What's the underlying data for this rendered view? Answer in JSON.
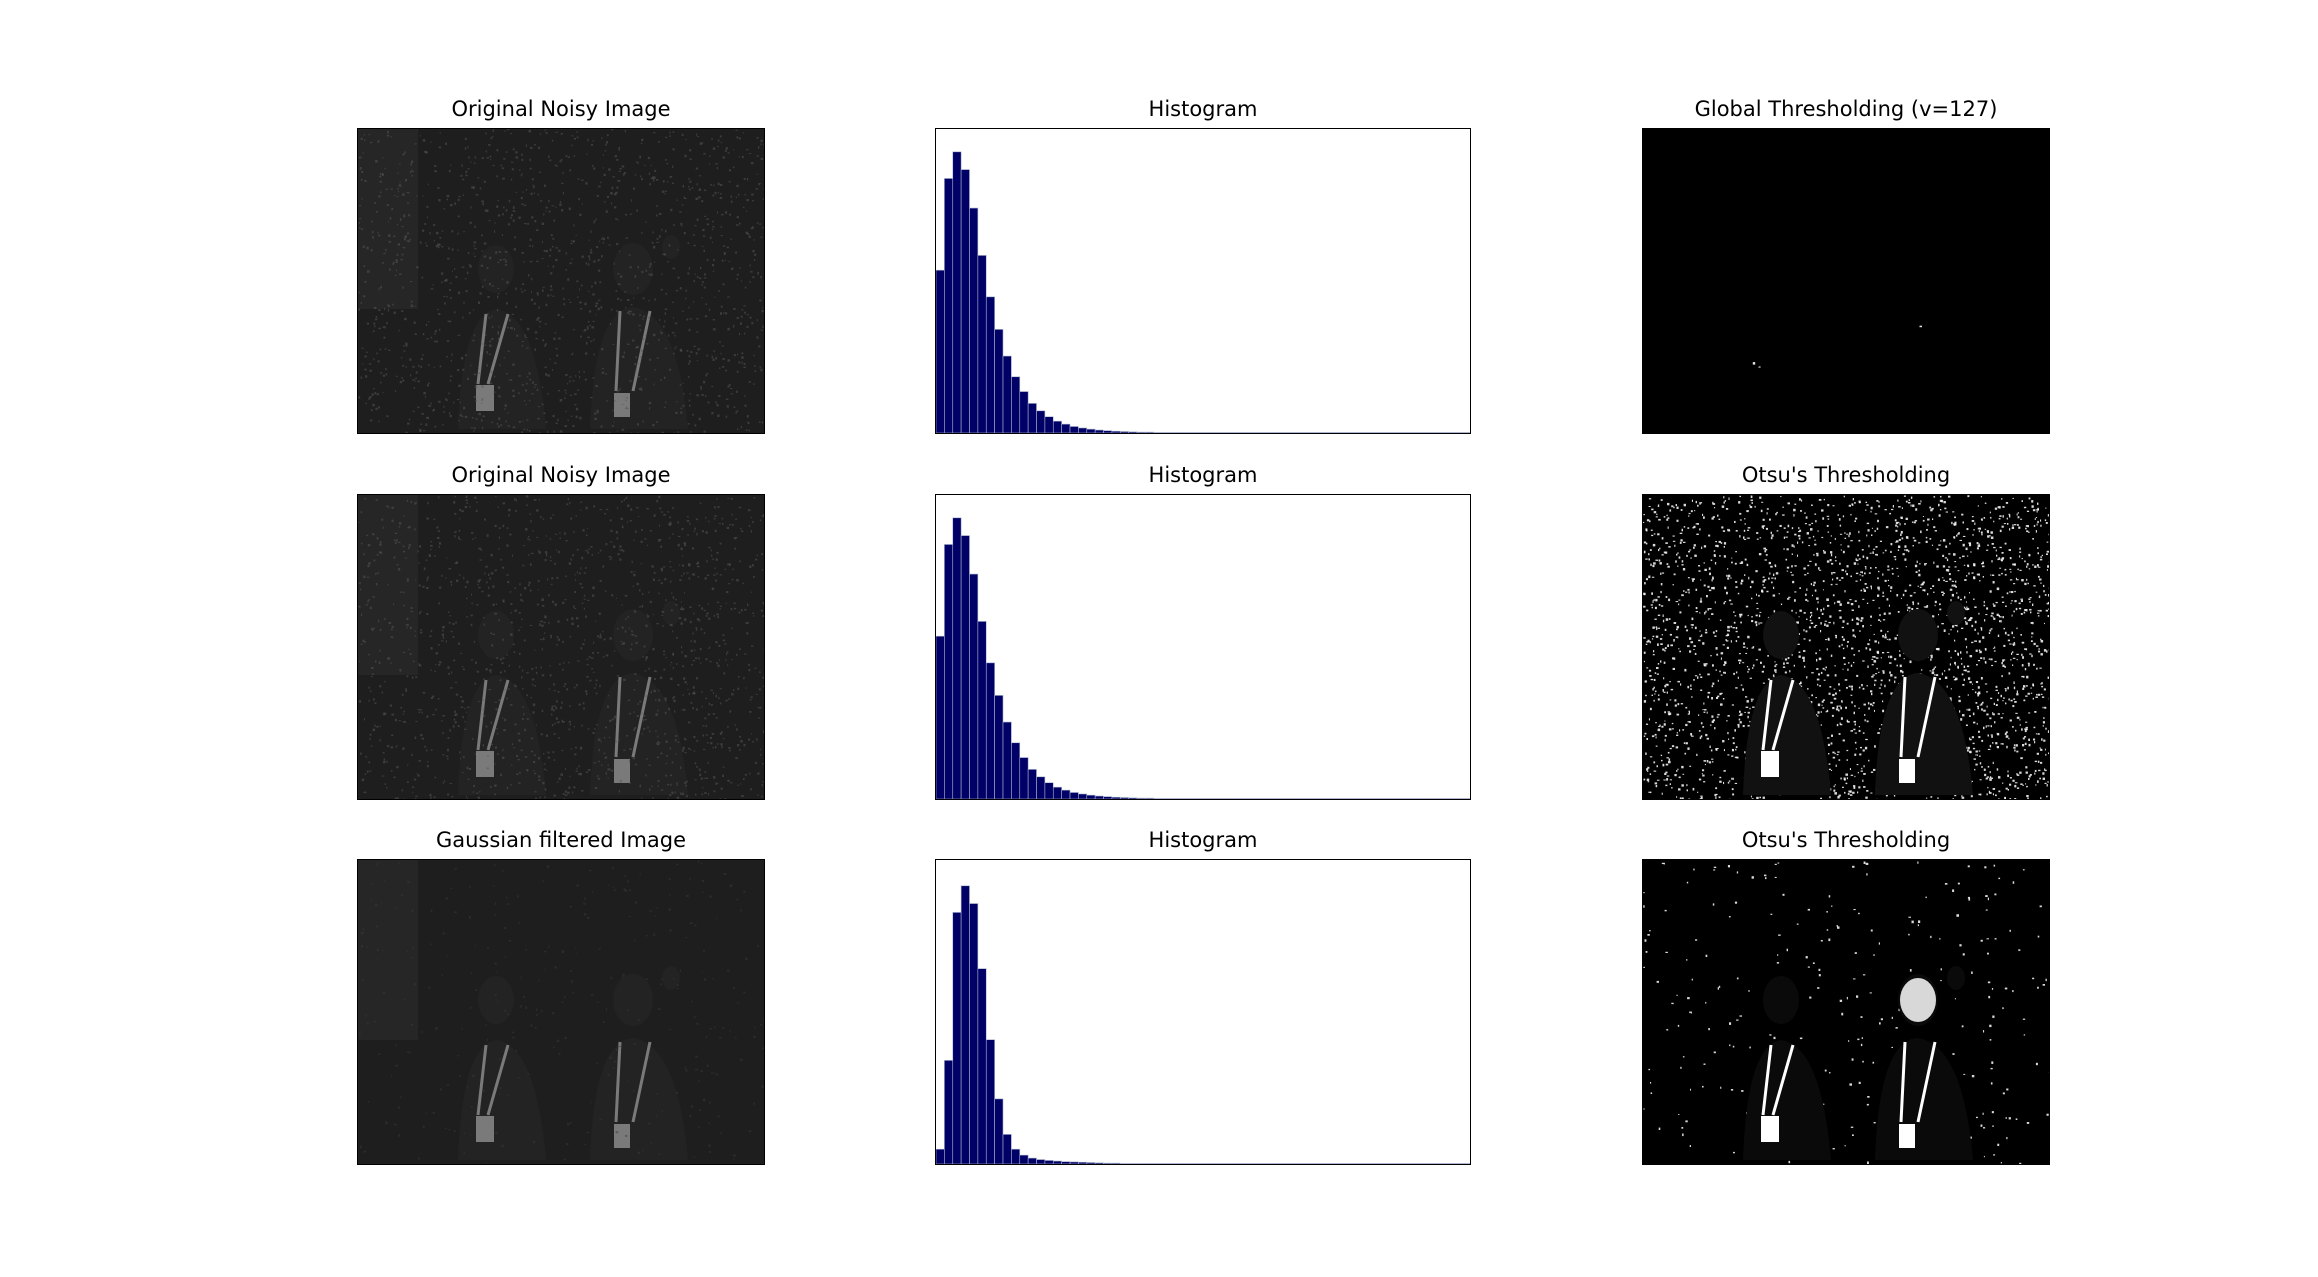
{
  "figure": {
    "rows": [
      {
        "image_title": "Original Noisy Image",
        "hist_title": "Histogram",
        "thresh_title": "Global Thresholding (v=127)"
      },
      {
        "image_title": "Original Noisy Image",
        "hist_title": "Histogram",
        "thresh_title": "Otsu's Thresholding"
      },
      {
        "image_title": "Gaussian filtered Image",
        "hist_title": "Histogram",
        "thresh_title": "Otsu's Thresholding"
      }
    ]
  },
  "colors": {
    "bar_fill": "#000066",
    "bar_edge": "#aab4cc",
    "image_dark": "#1e1e1e",
    "threshold_black": "#000000",
    "threshold_white": "#ffffff"
  },
  "chart_data": [
    {
      "type": "bar",
      "x_range": [
        0,
        255
      ],
      "grid": false,
      "bins": [
        0,
        4,
        8,
        12,
        16,
        20,
        24,
        28,
        32,
        36,
        40,
        44,
        48,
        52,
        56,
        60,
        64,
        68,
        72,
        76,
        80,
        84,
        88,
        92,
        96,
        100,
        104,
        108,
        112,
        116,
        120,
        124,
        128,
        132,
        136,
        140,
        144,
        148,
        152,
        156,
        160,
        164,
        168,
        172,
        176,
        180,
        184,
        188,
        192,
        196,
        200,
        204,
        208,
        212,
        216,
        220,
        224,
        228,
        232,
        236,
        240,
        244,
        248,
        252
      ],
      "values": [
        0.55,
        0.86,
        0.95,
        0.89,
        0.76,
        0.6,
        0.46,
        0.35,
        0.26,
        0.19,
        0.14,
        0.1,
        0.075,
        0.055,
        0.04,
        0.03,
        0.022,
        0.017,
        0.013,
        0.01,
        0.008,
        0.006,
        0.005,
        0.004,
        0.003,
        0.003,
        0.002,
        0.002,
        0.002,
        0.001,
        0.001,
        0.001,
        0.001,
        0.001,
        0.001,
        0.001,
        0.001,
        0.001,
        0.001,
        0.001,
        0.001,
        0.0005,
        0.0005,
        0.0005,
        0.0005,
        0.0005,
        0.0005,
        0.0005,
        0.0005,
        0.0005,
        0.0005,
        0.0005,
        0.0005,
        0.0005,
        0.0005,
        0.0005,
        0.0005,
        0.0005,
        0.0005,
        0.0005,
        0.0005,
        0.0005,
        0.0005,
        0.0005
      ]
    },
    {
      "type": "bar",
      "x_range": [
        0,
        255
      ],
      "grid": false,
      "bins": [
        0,
        4,
        8,
        12,
        16,
        20,
        24,
        28,
        32,
        36,
        40,
        44,
        48,
        52,
        56,
        60,
        64,
        68,
        72,
        76,
        80,
        84,
        88,
        92,
        96,
        100,
        104,
        108,
        112,
        116,
        120,
        124,
        128,
        132,
        136,
        140,
        144,
        148,
        152,
        156,
        160,
        164,
        168,
        172,
        176,
        180,
        184,
        188,
        192,
        196,
        200,
        204,
        208,
        212,
        216,
        220,
        224,
        228,
        232,
        236,
        240,
        244,
        248,
        252
      ],
      "values": [
        0.55,
        0.86,
        0.95,
        0.89,
        0.76,
        0.6,
        0.46,
        0.35,
        0.26,
        0.19,
        0.14,
        0.1,
        0.075,
        0.055,
        0.04,
        0.03,
        0.022,
        0.017,
        0.013,
        0.01,
        0.008,
        0.006,
        0.005,
        0.004,
        0.003,
        0.003,
        0.002,
        0.002,
        0.002,
        0.001,
        0.001,
        0.001,
        0.001,
        0.001,
        0.001,
        0.001,
        0.001,
        0.001,
        0.001,
        0.001,
        0.001,
        0.0005,
        0.0005,
        0.0005,
        0.0005,
        0.0005,
        0.0005,
        0.0005,
        0.0005,
        0.0005,
        0.0005,
        0.0005,
        0.0005,
        0.0005,
        0.0005,
        0.0005,
        0.0005,
        0.0005,
        0.0005,
        0.0005,
        0.0005,
        0.0005,
        0.0005,
        0.0005
      ]
    },
    {
      "type": "bar",
      "x_range": [
        0,
        255
      ],
      "grid": false,
      "bins": [
        0,
        4,
        8,
        12,
        16,
        20,
        24,
        28,
        32,
        36,
        40,
        44,
        48,
        52,
        56,
        60,
        64,
        68,
        72,
        76,
        80,
        84,
        88,
        92,
        96,
        100,
        104,
        108,
        112,
        116,
        120,
        124,
        128,
        132,
        136,
        140,
        144,
        148,
        152,
        156,
        160,
        164,
        168,
        172,
        176,
        180,
        184,
        188,
        192,
        196,
        200,
        204,
        208,
        212,
        216,
        220,
        224,
        228,
        232,
        236,
        240,
        244,
        248,
        252
      ],
      "values": [
        0.05,
        0.35,
        0.85,
        0.94,
        0.88,
        0.66,
        0.42,
        0.22,
        0.1,
        0.05,
        0.03,
        0.02,
        0.015,
        0.012,
        0.01,
        0.008,
        0.007,
        0.006,
        0.005,
        0.004,
        0.003,
        0.003,
        0.002,
        0.002,
        0.002,
        0.002,
        0.001,
        0.001,
        0.001,
        0.001,
        0.001,
        0.001,
        0.001,
        0.0005,
        0.0005,
        0.0005,
        0.0005,
        0.0005,
        0.0005,
        0.0005,
        0.0005,
        0.0005,
        0.0005,
        0.0005,
        0.0005,
        0.0005,
        0.0005,
        0.0005,
        0.0005,
        0.0005,
        0.0005,
        0.0005,
        0.0005,
        0.0005,
        0.0005,
        0.0005,
        0.0005,
        0.0005,
        0.0005,
        0.0005,
        0.0005,
        0.0005,
        0.0005,
        0.0005
      ]
    }
  ]
}
